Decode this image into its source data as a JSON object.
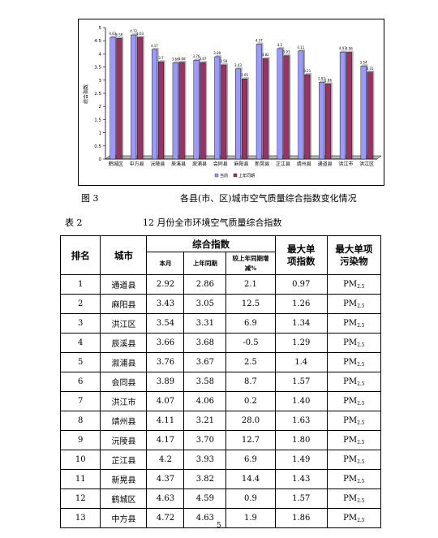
{
  "chart_data": {
    "type": "bar",
    "categories": [
      "鹤城区",
      "中方县",
      "沅陵县",
      "辰溪县",
      "溆浦县",
      "会同县",
      "麻阳县",
      "新晃县",
      "芷江县",
      "靖州县",
      "通道县",
      "洪江市",
      "洪江区"
    ],
    "series": [
      {
        "name": "当前",
        "color": "#9999ff",
        "values": [
          4.63,
          4.72,
          4.17,
          3.66,
          3.76,
          3.89,
          3.43,
          4.37,
          4.2,
          4.11,
          2.92,
          4.07,
          3.54
        ]
      },
      {
        "name": "上年同期",
        "color": "#993366",
        "values": [
          4.59,
          4.63,
          3.7,
          3.68,
          3.67,
          3.58,
          3.05,
          3.82,
          3.93,
          3.21,
          2.86,
          4.06,
          3.31
        ]
      }
    ],
    "title": "",
    "xlabel": "",
    "ylabel": "综合指数",
    "ylim": [
      0,
      5
    ],
    "yticks": [
      "0",
      "0.5",
      "1",
      "1.5",
      "2",
      "2.5",
      "3",
      "3.5",
      "4",
      "4.5",
      "5"
    ],
    "grid": false,
    "legend": "bottom"
  },
  "figure": {
    "label": "图 3",
    "caption": "各县(市、区)城市空气质量综合指数变化情况"
  },
  "table": {
    "label": "表 2",
    "caption": "12 月份全市环境空气质量综合指数",
    "headers": {
      "rank": "排名",
      "city": "城市",
      "index_group": "综合指数",
      "this_month": "本月",
      "last_year": "上年同期",
      "change": "较上年同期增减%",
      "max_single": "最大单项指数",
      "max_pollutant": "最大单项污染物"
    },
    "rows": [
      {
        "rank": "1",
        "city": "通道县",
        "this_month": "2.92",
        "last_year": "2.86",
        "change": "2.1",
        "max_single": "0.97",
        "pm": "PM",
        "pm_sub": "2.5"
      },
      {
        "rank": "2",
        "city": "麻阳县",
        "this_month": "3.43",
        "last_year": "3.05",
        "change": "12.5",
        "max_single": "1.26",
        "pm": "PM",
        "pm_sub": "2.5"
      },
      {
        "rank": "3",
        "city": "洪江区",
        "this_month": "3.54",
        "last_year": "3.31",
        "change": "6.9",
        "max_single": "1.34",
        "pm": "PM",
        "pm_sub": "2.5"
      },
      {
        "rank": "4",
        "city": "辰溪县",
        "this_month": "3.66",
        "last_year": "3.68",
        "change": "-0.5",
        "max_single": "1.29",
        "pm": "PM",
        "pm_sub": "2.5"
      },
      {
        "rank": "5",
        "city": "溆浦县",
        "this_month": "3.76",
        "last_year": "3.67",
        "change": "2.5",
        "max_single": "1.4",
        "pm": "PM",
        "pm_sub": "2.5"
      },
      {
        "rank": "6",
        "city": "会同县",
        "this_month": "3.89",
        "last_year": "3.58",
        "change": "8.7",
        "max_single": "1.57",
        "pm": "PM",
        "pm_sub": "2.5"
      },
      {
        "rank": "7",
        "city": "洪江市",
        "this_month": "4.07",
        "last_year": "4.06",
        "change": "0.2",
        "max_single": "1.40",
        "pm": "PM",
        "pm_sub": "2.5"
      },
      {
        "rank": "8",
        "city": "靖州县",
        "this_month": "4.11",
        "last_year": "3.21",
        "change": "28.0",
        "max_single": "1.63",
        "pm": "PM",
        "pm_sub": "2.5"
      },
      {
        "rank": "9",
        "city": "沅陵县",
        "this_month": "4.17",
        "last_year": "3.70",
        "change": "12.7",
        "max_single": "1.80",
        "pm": "PM",
        "pm_sub": "2.5"
      },
      {
        "rank": "10",
        "city": "芷江县",
        "this_month": "4.2",
        "last_year": "3.93",
        "change": "6.9",
        "max_single": "1.49",
        "pm": "PM",
        "pm_sub": "2.5"
      },
      {
        "rank": "11",
        "city": "新晃县",
        "this_month": "4.37",
        "last_year": "3.82",
        "change": "14.4",
        "max_single": "1.43",
        "pm": "PM",
        "pm_sub": "2.5"
      },
      {
        "rank": "12",
        "city": "鹤城区",
        "this_month": "4.63",
        "last_year": "4.59",
        "change": "0.9",
        "max_single": "1.57",
        "pm": "PM",
        "pm_sub": "2.5"
      },
      {
        "rank": "13",
        "city": "中方县",
        "this_month": "4.72",
        "last_year": "4.63",
        "change": "1.9",
        "max_single": "1.86",
        "pm": "PM",
        "pm_sub": "2.5"
      }
    ]
  },
  "page_number": "5"
}
